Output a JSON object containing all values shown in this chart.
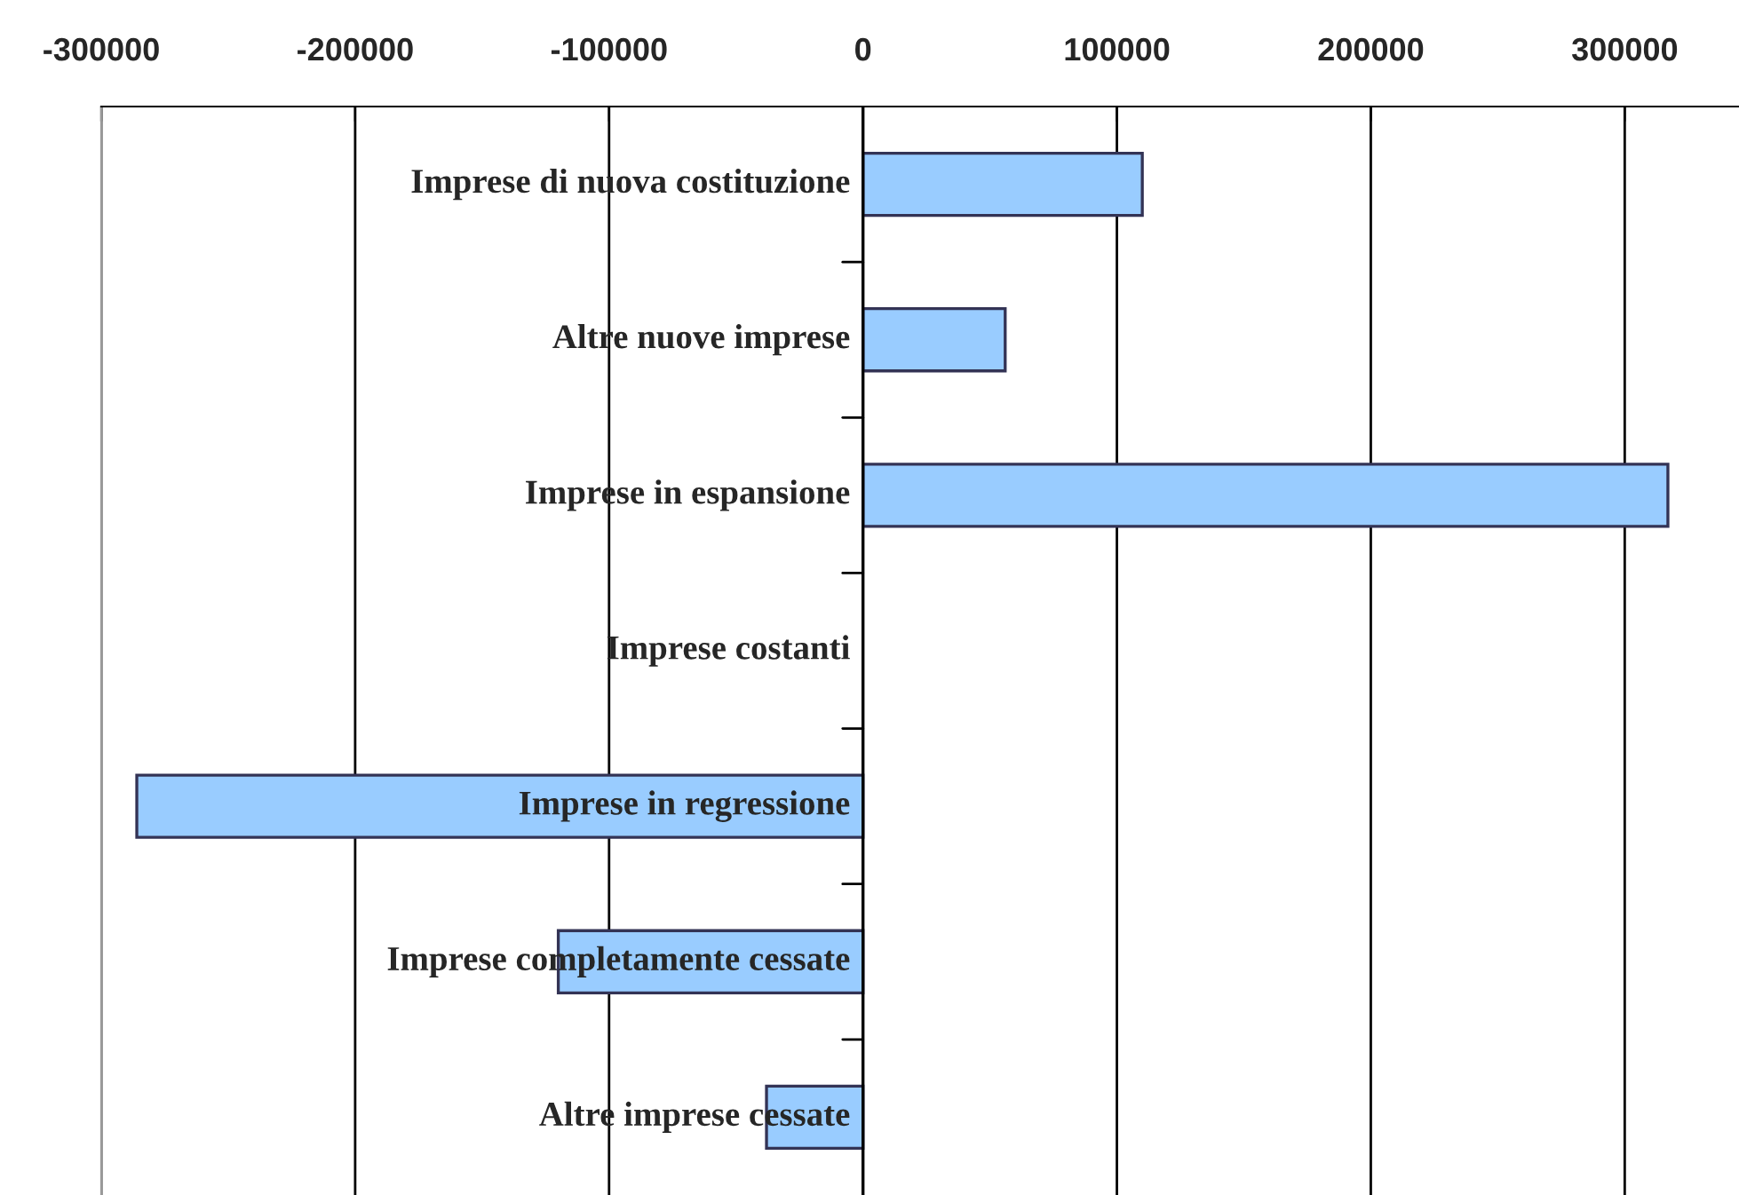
{
  "chart_data": {
    "type": "bar",
    "orientation": "horizontal",
    "categories": [
      "Imprese di nuova costituzione",
      "Altre nuove imprese",
      "Imprese in espansione",
      "Imprese costanti",
      "Imprese in regressione",
      "Imprese completamente cessate",
      "Altre imprese cessate"
    ],
    "values": [
      110000,
      56000,
      317000,
      0,
      -286000,
      -120000,
      -38000
    ],
    "color": "#99ccff",
    "xlim": [
      -300000,
      345000
    ],
    "xticks": [
      -300000,
      -200000,
      -100000,
      0,
      100000,
      200000,
      300000
    ],
    "grid": "x",
    "legend": false
  }
}
